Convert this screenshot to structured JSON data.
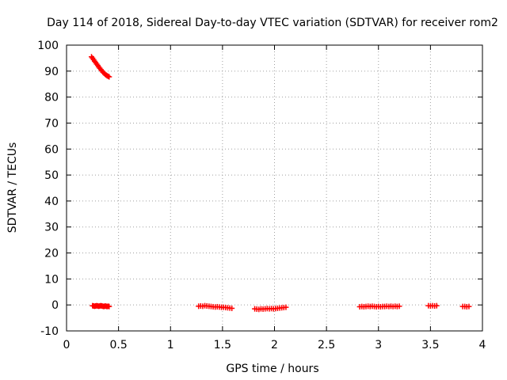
{
  "chart_data": {
    "type": "scatter",
    "title": "Day 114 of 2018, Sidereal Day-to-day VTEC variation (SDTVAR) for receiver rom2",
    "xlabel": "GPS time / hours",
    "ylabel": "SDTVAR / TECUs",
    "xlim": [
      0,
      4
    ],
    "ylim": [
      -10,
      100
    ],
    "xticks": [
      "0",
      "0.5",
      "1",
      "1.5",
      "2",
      "2.5",
      "3",
      "3.5",
      "4"
    ],
    "yticks": [
      "-10",
      "0",
      "10",
      "20",
      "30",
      "40",
      "50",
      "60",
      "70",
      "80",
      "90",
      "100"
    ],
    "grid": true,
    "marker": "plus",
    "color": "#ff0000",
    "series": [
      {
        "points": [
          [
            0.24,
            95.5
          ],
          [
            0.25,
            95.0
          ],
          [
            0.26,
            94.4
          ],
          [
            0.27,
            93.8
          ],
          [
            0.28,
            93.3
          ],
          [
            0.29,
            92.7
          ],
          [
            0.3,
            92.2
          ],
          [
            0.31,
            91.6
          ],
          [
            0.32,
            91.1
          ],
          [
            0.33,
            90.6
          ],
          [
            0.34,
            90.1
          ],
          [
            0.35,
            89.6
          ],
          [
            0.36,
            89.2
          ],
          [
            0.37,
            88.8
          ],
          [
            0.38,
            88.5
          ],
          [
            0.39,
            88.2
          ],
          [
            0.4,
            88.0
          ],
          [
            0.41,
            87.8
          ],
          [
            0.25,
            -0.3
          ],
          [
            0.26,
            -0.4
          ],
          [
            0.27,
            -0.5
          ],
          [
            0.28,
            -0.4
          ],
          [
            0.29,
            -0.3
          ],
          [
            0.3,
            -0.4
          ],
          [
            0.31,
            -0.5
          ],
          [
            0.32,
            -0.4
          ],
          [
            0.33,
            -0.3
          ],
          [
            0.34,
            -0.4
          ],
          [
            0.35,
            -0.5
          ],
          [
            0.36,
            -0.6
          ],
          [
            0.37,
            -0.4
          ],
          [
            0.38,
            -0.5
          ],
          [
            0.39,
            -0.6
          ],
          [
            0.4,
            -0.5
          ],
          [
            0.41,
            -0.6
          ],
          [
            1.27,
            -0.5
          ],
          [
            1.29,
            -0.4
          ],
          [
            1.31,
            -0.5
          ],
          [
            1.33,
            -0.3
          ],
          [
            1.35,
            -0.4
          ],
          [
            1.37,
            -0.5
          ],
          [
            1.39,
            -0.6
          ],
          [
            1.41,
            -0.7
          ],
          [
            1.43,
            -0.8
          ],
          [
            1.45,
            -0.7
          ],
          [
            1.47,
            -0.8
          ],
          [
            1.49,
            -0.9
          ],
          [
            1.51,
            -0.9
          ],
          [
            1.53,
            -1.0
          ],
          [
            1.55,
            -1.1
          ],
          [
            1.57,
            -1.2
          ],
          [
            1.59,
            -1.3
          ],
          [
            1.81,
            -1.5
          ],
          [
            1.83,
            -1.6
          ],
          [
            1.85,
            -1.7
          ],
          [
            1.87,
            -1.5
          ],
          [
            1.89,
            -1.6
          ],
          [
            1.91,
            -1.5
          ],
          [
            1.93,
            -1.4
          ],
          [
            1.95,
            -1.5
          ],
          [
            1.97,
            -1.4
          ],
          [
            1.99,
            -1.5
          ],
          [
            2.01,
            -1.4
          ],
          [
            2.03,
            -1.3
          ],
          [
            2.05,
            -1.2
          ],
          [
            2.07,
            -1.1
          ],
          [
            2.09,
            -1.0
          ],
          [
            2.11,
            -0.9
          ],
          [
            2.82,
            -0.7
          ],
          [
            2.84,
            -0.6
          ],
          [
            2.86,
            -0.7
          ],
          [
            2.88,
            -0.6
          ],
          [
            2.9,
            -0.5
          ],
          [
            2.92,
            -0.6
          ],
          [
            2.94,
            -0.5
          ],
          [
            2.96,
            -0.6
          ],
          [
            2.98,
            -0.7
          ],
          [
            3.0,
            -0.6
          ],
          [
            3.02,
            -0.7
          ],
          [
            3.04,
            -0.6
          ],
          [
            3.06,
            -0.6
          ],
          [
            3.08,
            -0.5
          ],
          [
            3.1,
            -0.6
          ],
          [
            3.12,
            -0.5
          ],
          [
            3.14,
            -0.6
          ],
          [
            3.16,
            -0.5
          ],
          [
            3.18,
            -0.6
          ],
          [
            3.2,
            -0.5
          ],
          [
            3.48,
            -0.3
          ],
          [
            3.5,
            -0.4
          ],
          [
            3.52,
            -0.3
          ],
          [
            3.54,
            -0.4
          ],
          [
            3.56,
            -0.3
          ],
          [
            3.81,
            -0.6
          ],
          [
            3.83,
            -0.6
          ],
          [
            3.85,
            -0.7
          ],
          [
            3.87,
            -0.6
          ]
        ]
      }
    ]
  }
}
